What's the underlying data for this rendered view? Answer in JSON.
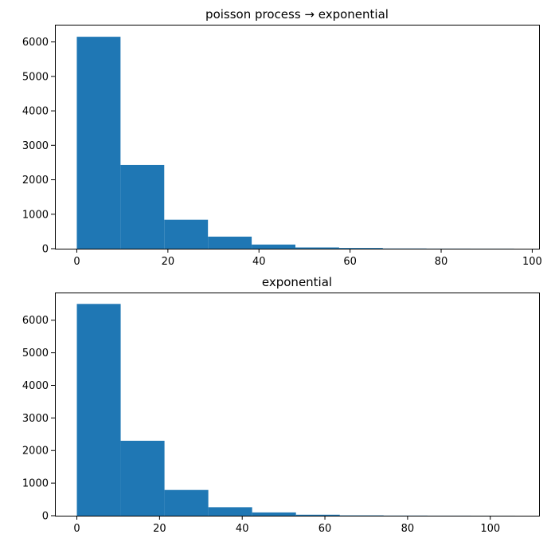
{
  "chart_data": [
    {
      "type": "bar",
      "title": "poisson process → exponential",
      "xlabel": "",
      "ylabel": "",
      "xlim": [
        -4.8,
        101.5
      ],
      "ylim": [
        0,
        6500
      ],
      "xticks": [
        0,
        20,
        40,
        60,
        80,
        100
      ],
      "yticks": [
        0,
        1000,
        2000,
        3000,
        4000,
        5000,
        6000
      ],
      "bin_edges": [
        0,
        9.6,
        19.2,
        28.8,
        38.4,
        48.0,
        57.6,
        67.2,
        76.8,
        86.4,
        96.0
      ],
      "values": [
        6150,
        2430,
        840,
        350,
        120,
        35,
        20,
        6,
        3,
        2
      ],
      "color": "#1f77b4",
      "grid": false,
      "legend": "none"
    },
    {
      "type": "bar",
      "title": "exponential",
      "xlabel": "",
      "ylabel": "",
      "xlim": [
        -5.3,
        111.8
      ],
      "ylim": [
        0,
        6850
      ],
      "xticks": [
        0,
        20,
        40,
        60,
        80,
        100
      ],
      "yticks": [
        0,
        1000,
        2000,
        3000,
        4000,
        5000,
        6000
      ],
      "bin_edges": [
        0,
        10.6,
        21.2,
        31.8,
        42.4,
        53.0,
        63.6,
        74.2,
        84.8,
        95.4,
        106.0
      ],
      "values": [
        6500,
        2300,
        790,
        260,
        100,
        30,
        10,
        4,
        2,
        1
      ],
      "color": "#1f77b4",
      "grid": false,
      "legend": "none"
    }
  ]
}
